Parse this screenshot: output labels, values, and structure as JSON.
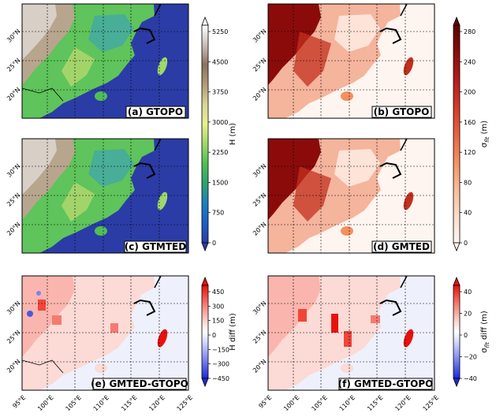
{
  "panels": [
    {
      "id": "a",
      "title": "(a) GTOPO",
      "field": "H"
    },
    {
      "id": "b",
      "title": "(b) GTOPO",
      "field": "sigma"
    },
    {
      "id": "c",
      "title": "(c) GTMTED",
      "field": "H"
    },
    {
      "id": "d",
      "title": "(d) GMTED",
      "field": "sigma"
    },
    {
      "id": "e",
      "title": "(e) GMTED-GTOPO",
      "field": "Hdiff"
    },
    {
      "id": "f",
      "title": "(f) GMTED-GTOPO",
      "field": "sigmadiff"
    }
  ],
  "lat_labels": [
    "30°N",
    "25°N",
    "20°N"
  ],
  "lon_labels": [
    "95°E",
    "100°E",
    "105°E",
    "110°E",
    "115°E",
    "120°E",
    "125°E"
  ],
  "colorbars": {
    "H": {
      "label": "H (m)",
      "ticks": [
        "5250",
        "4500",
        "3750",
        "3000",
        "2250",
        "1500",
        "750",
        "0"
      ],
      "colors": [
        "#ffffff",
        "#c9bfb8",
        "#8c725e",
        "#b49a79",
        "#d9d59a",
        "#e8f08e",
        "#9ed86a",
        "#4fbf55",
        "#2ea36e",
        "#1e7fc2",
        "#1f5fc7",
        "#2b3ca6"
      ]
    },
    "sigma": {
      "label": "σ_flt (m)",
      "label_main": "σ",
      "label_sub": "flt",
      "label_unit": " (m)",
      "ticks": [
        "280",
        "240",
        "200",
        "160",
        "120",
        "80",
        "40",
        "0"
      ],
      "colors": [
        "#5e0000",
        "#8b0b0b",
        "#b41c1c",
        "#d33a2a",
        "#e8613f",
        "#f4905f",
        "#f9bb96",
        "#fcdcc8",
        "#fff5f0"
      ]
    },
    "Hdiff": {
      "label": "H diff (m)",
      "ticks": [
        "450",
        "300",
        "150",
        "0",
        "−150",
        "−300",
        "−450"
      ],
      "colors": [
        "#e8120c",
        "#f0453a",
        "#f57a70",
        "#f9aca4",
        "#fcdad5",
        "#ffffff",
        "#d7dcff",
        "#a9b1f6",
        "#7a85ee",
        "#4b58e3",
        "#1d28d6"
      ]
    },
    "sigmadiff": {
      "label": "σ_flt diff (m)",
      "label_main": "σ",
      "label_sub": "flt",
      "label_unit": " diff (m)",
      "ticks": [
        "40",
        "20",
        "0",
        "−20",
        "−40"
      ],
      "colors": [
        "#e8120c",
        "#f0453a",
        "#f57a70",
        "#f9aca4",
        "#fcdad5",
        "#ffffff",
        "#d7dcff",
        "#a9b1f6",
        "#7a85ee",
        "#4b58e3",
        "#1d28d6"
      ]
    }
  },
  "colors": {
    "ocean": "#2b3ca6",
    "land_low": "#4fbf55",
    "sigma_light": "#fbe3da",
    "diff_ocean": "#eef0fb"
  }
}
